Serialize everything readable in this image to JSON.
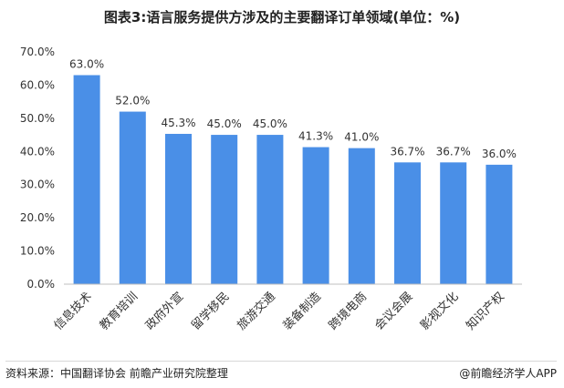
{
  "title": "图表3:语言服务提供方涉及的主要翻译订单领域(单位：%)",
  "footer": {
    "source": "资料来源：中国翻译协会 前瞻产业研究院整理",
    "brand": "@前瞻经济学人APP"
  },
  "chart_data": {
    "type": "bar",
    "categories": [
      "信息技术",
      "教育培训",
      "政府外宣",
      "留学移民",
      "旅游交通",
      "装备制造",
      "跨境电商",
      "会议会展",
      "影视文化",
      "知识产权"
    ],
    "values": [
      63.0,
      52.0,
      45.3,
      45.0,
      45.0,
      41.3,
      41.0,
      36.7,
      36.7,
      36.0
    ],
    "value_labels": [
      "63.0%",
      "52.0%",
      "45.3%",
      "45.0%",
      "45.0%",
      "41.3%",
      "41.0%",
      "36.7%",
      "36.7%",
      "36.0%"
    ],
    "ylim": [
      0,
      70
    ],
    "yticks": [
      0,
      10,
      20,
      30,
      40,
      50,
      60,
      70
    ],
    "ytick_labels": [
      "0.0%",
      "10.0%",
      "20.0%",
      "30.0%",
      "40.0%",
      "50.0%",
      "60.0%",
      "70.0%"
    ],
    "bar_color": "#4a8fe7",
    "grid": false,
    "legend": "none"
  }
}
